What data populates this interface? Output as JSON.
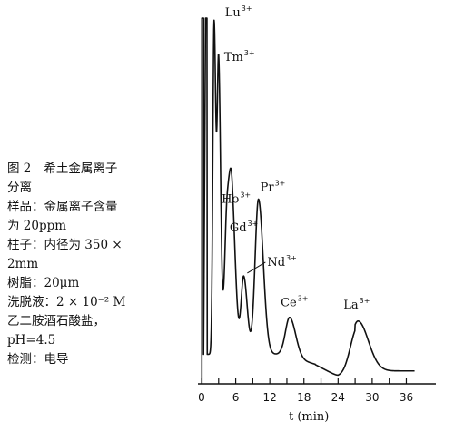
{
  "caption": {
    "figure_label": "图 2",
    "title_1": "希土金属离子",
    "title_2": "分离",
    "sample": "样品：金属离子含量",
    "sample_cont": "为 20ppm",
    "column": "柱子：内径为 350 ×",
    "column_cont": "2mm",
    "resin": "树脂：20μm",
    "eluent": "洗脱液：2 × 10⁻² M",
    "eluent_cont": "乙二胺酒石酸盐，",
    "eluent_ph": "pH=4.5",
    "detection": "检测：电导"
  },
  "chart_data": {
    "type": "line",
    "xlabel": "t (min)",
    "xlim": [
      0,
      38
    ],
    "x_ticks": [
      0,
      3,
      6,
      9,
      12,
      15,
      18,
      21,
      24,
      27,
      30,
      33,
      36
    ],
    "x_tick_labels": [
      "0",
      "",
      "6",
      "",
      "12",
      "",
      "18",
      "",
      "24",
      "",
      "30",
      "",
      "36"
    ],
    "ylim": [
      0,
      100
    ],
    "grid": false,
    "peaks": [
      {
        "name": "Lu",
        "charge": "3+",
        "x": 2.2,
        "height": 98
      },
      {
        "name": "Tm",
        "charge": "3+",
        "x": 3.0,
        "height": 86
      },
      {
        "name": "Ho",
        "charge": "3+",
        "x": 4.5,
        "height": 47
      },
      {
        "name": "Gd",
        "charge": "3+",
        "x": 5.4,
        "height": 40
      },
      {
        "name": "Nd",
        "charge": "3+",
        "x": 7.4,
        "height": 29
      },
      {
        "name": "Pr",
        "charge": "3+",
        "x": 10.0,
        "height": 50
      },
      {
        "name": "Ce",
        "charge": "3+",
        "x": 15.5,
        "height": 18
      },
      {
        "name": "La",
        "charge": "3+",
        "x": 27.5,
        "height": 17
      }
    ]
  }
}
